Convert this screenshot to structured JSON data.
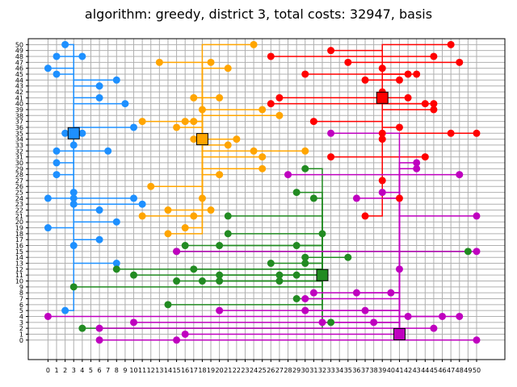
{
  "chart_data": {
    "type": "scatter",
    "title": "algorithm: greedy, district 3, total costs: 32947, basis",
    "xlabel": "",
    "ylabel": "",
    "xlim": [
      -2.3,
      53.3
    ],
    "ylim": [
      -3.3,
      51.0
    ],
    "x_ticks": [
      0,
      1,
      2,
      3,
      4,
      5,
      6,
      7,
      8,
      9,
      10,
      11,
      12,
      13,
      14,
      15,
      16,
      17,
      18,
      19,
      20,
      21,
      22,
      23,
      24,
      25,
      26,
      27,
      28,
      29,
      30,
      31,
      32,
      33,
      34,
      35,
      36,
      37,
      38,
      39,
      40,
      41,
      42,
      43,
      44,
      45,
      46,
      47,
      48,
      49,
      50
    ],
    "y_ticks": [
      0,
      1,
      2,
      3,
      4,
      5,
      6,
      7,
      8,
      9,
      10,
      11,
      12,
      13,
      14,
      15,
      16,
      17,
      18,
      19,
      20,
      21,
      22,
      23,
      24,
      25,
      26,
      27,
      28,
      29,
      30,
      31,
      32,
      33,
      34,
      35,
      36,
      37,
      38,
      39,
      40,
      41,
      42,
      43,
      44,
      45,
      46,
      47,
      48,
      49,
      50
    ],
    "grid": true,
    "legend": "none",
    "series": [
      {
        "color": "#1e90ff",
        "hub": [
          3,
          35
        ],
        "points": [
          [
            2,
            50
          ],
          [
            1,
            48
          ],
          [
            4,
            48
          ],
          [
            0,
            46
          ],
          [
            1,
            45
          ],
          [
            8,
            44
          ],
          [
            6,
            43
          ],
          [
            6,
            41
          ],
          [
            9,
            40
          ],
          [
            10,
            36
          ],
          [
            2,
            35
          ],
          [
            4,
            35
          ],
          [
            3,
            33
          ],
          [
            1,
            32
          ],
          [
            7,
            32
          ],
          [
            1,
            30
          ],
          [
            1,
            28
          ],
          [
            3,
            25
          ],
          [
            0,
            24
          ],
          [
            3,
            24
          ],
          [
            10,
            24
          ],
          [
            11,
            23
          ],
          [
            3,
            23
          ],
          [
            6,
            22
          ],
          [
            8,
            20
          ],
          [
            0,
            19
          ],
          [
            6,
            17
          ],
          [
            3,
            16
          ],
          [
            8,
            13
          ],
          [
            2,
            5
          ]
        ]
      },
      {
        "color": "#ffa500",
        "hub": [
          18,
          34
        ],
        "points": [
          [
            24,
            50
          ],
          [
            13,
            47
          ],
          [
            19,
            47
          ],
          [
            21,
            46
          ],
          [
            17,
            41
          ],
          [
            20,
            41
          ],
          [
            18,
            39
          ],
          [
            25,
            39
          ],
          [
            27,
            38
          ],
          [
            11,
            37
          ],
          [
            16,
            37
          ],
          [
            17,
            37
          ],
          [
            15,
            36
          ],
          [
            17,
            34
          ],
          [
            22,
            34
          ],
          [
            21,
            33
          ],
          [
            24,
            32
          ],
          [
            30,
            32
          ],
          [
            25,
            31
          ],
          [
            25,
            29
          ],
          [
            20,
            28
          ],
          [
            12,
            26
          ],
          [
            18,
            24
          ],
          [
            14,
            22
          ],
          [
            19,
            22
          ],
          [
            11,
            21
          ],
          [
            17,
            21
          ],
          [
            16,
            19
          ],
          [
            14,
            18
          ]
        ]
      },
      {
        "color": "#ff0000",
        "hub": [
          39,
          41
        ],
        "points": [
          [
            47,
            50
          ],
          [
            33,
            49
          ],
          [
            26,
            48
          ],
          [
            45,
            48
          ],
          [
            35,
            47
          ],
          [
            48,
            47
          ],
          [
            39,
            46
          ],
          [
            30,
            45
          ],
          [
            42,
            45
          ],
          [
            43,
            45
          ],
          [
            37,
            44
          ],
          [
            41,
            44
          ],
          [
            39,
            42
          ],
          [
            27,
            41
          ],
          [
            42,
            41
          ],
          [
            26,
            40
          ],
          [
            44,
            40
          ],
          [
            45,
            40
          ],
          [
            45,
            39
          ],
          [
            31,
            37
          ],
          [
            41,
            36
          ],
          [
            39,
            35
          ],
          [
            47,
            35
          ],
          [
            50,
            35
          ],
          [
            39,
            34
          ],
          [
            33,
            31
          ],
          [
            44,
            31
          ],
          [
            39,
            27
          ],
          [
            41,
            24
          ],
          [
            37,
            21
          ]
        ]
      },
      {
        "color": "#228b22",
        "hub": [
          32,
          11
        ],
        "points": [
          [
            30,
            29
          ],
          [
            29,
            25
          ],
          [
            31,
            24
          ],
          [
            21,
            21
          ],
          [
            21,
            18
          ],
          [
            32,
            18
          ],
          [
            20,
            16
          ],
          [
            29,
            16
          ],
          [
            15,
            15
          ],
          [
            16,
            16
          ],
          [
            49,
            15
          ],
          [
            30,
            14
          ],
          [
            35,
            14
          ],
          [
            26,
            13
          ],
          [
            30,
            13
          ],
          [
            8,
            12
          ],
          [
            17,
            12
          ],
          [
            10,
            11
          ],
          [
            20,
            11
          ],
          [
            27,
            11
          ],
          [
            29,
            11
          ],
          [
            15,
            10
          ],
          [
            18,
            10
          ],
          [
            20,
            10
          ],
          [
            27,
            10
          ],
          [
            29,
            7
          ],
          [
            14,
            6
          ],
          [
            3,
            9
          ],
          [
            4,
            2
          ],
          [
            33,
            3
          ]
        ]
      },
      {
        "color": "#bf00bf",
        "hub": [
          41,
          1
        ],
        "points": [
          [
            33,
            35
          ],
          [
            43,
            30
          ],
          [
            43,
            29
          ],
          [
            28,
            28
          ],
          [
            48,
            28
          ],
          [
            39,
            25
          ],
          [
            36,
            24
          ],
          [
            50,
            21
          ],
          [
            15,
            15
          ],
          [
            50,
            15
          ],
          [
            41,
            12
          ],
          [
            40,
            8
          ],
          [
            31,
            8
          ],
          [
            36,
            8
          ],
          [
            30,
            7
          ],
          [
            20,
            5
          ],
          [
            30,
            5
          ],
          [
            37,
            5
          ],
          [
            0,
            4
          ],
          [
            42,
            4
          ],
          [
            46,
            4
          ],
          [
            48,
            4
          ],
          [
            10,
            3
          ],
          [
            32,
            3
          ],
          [
            38,
            3
          ],
          [
            6,
            2
          ],
          [
            45,
            2
          ],
          [
            16,
            1
          ],
          [
            6,
            0
          ],
          [
            15,
            0
          ],
          [
            50,
            0
          ]
        ]
      }
    ]
  }
}
